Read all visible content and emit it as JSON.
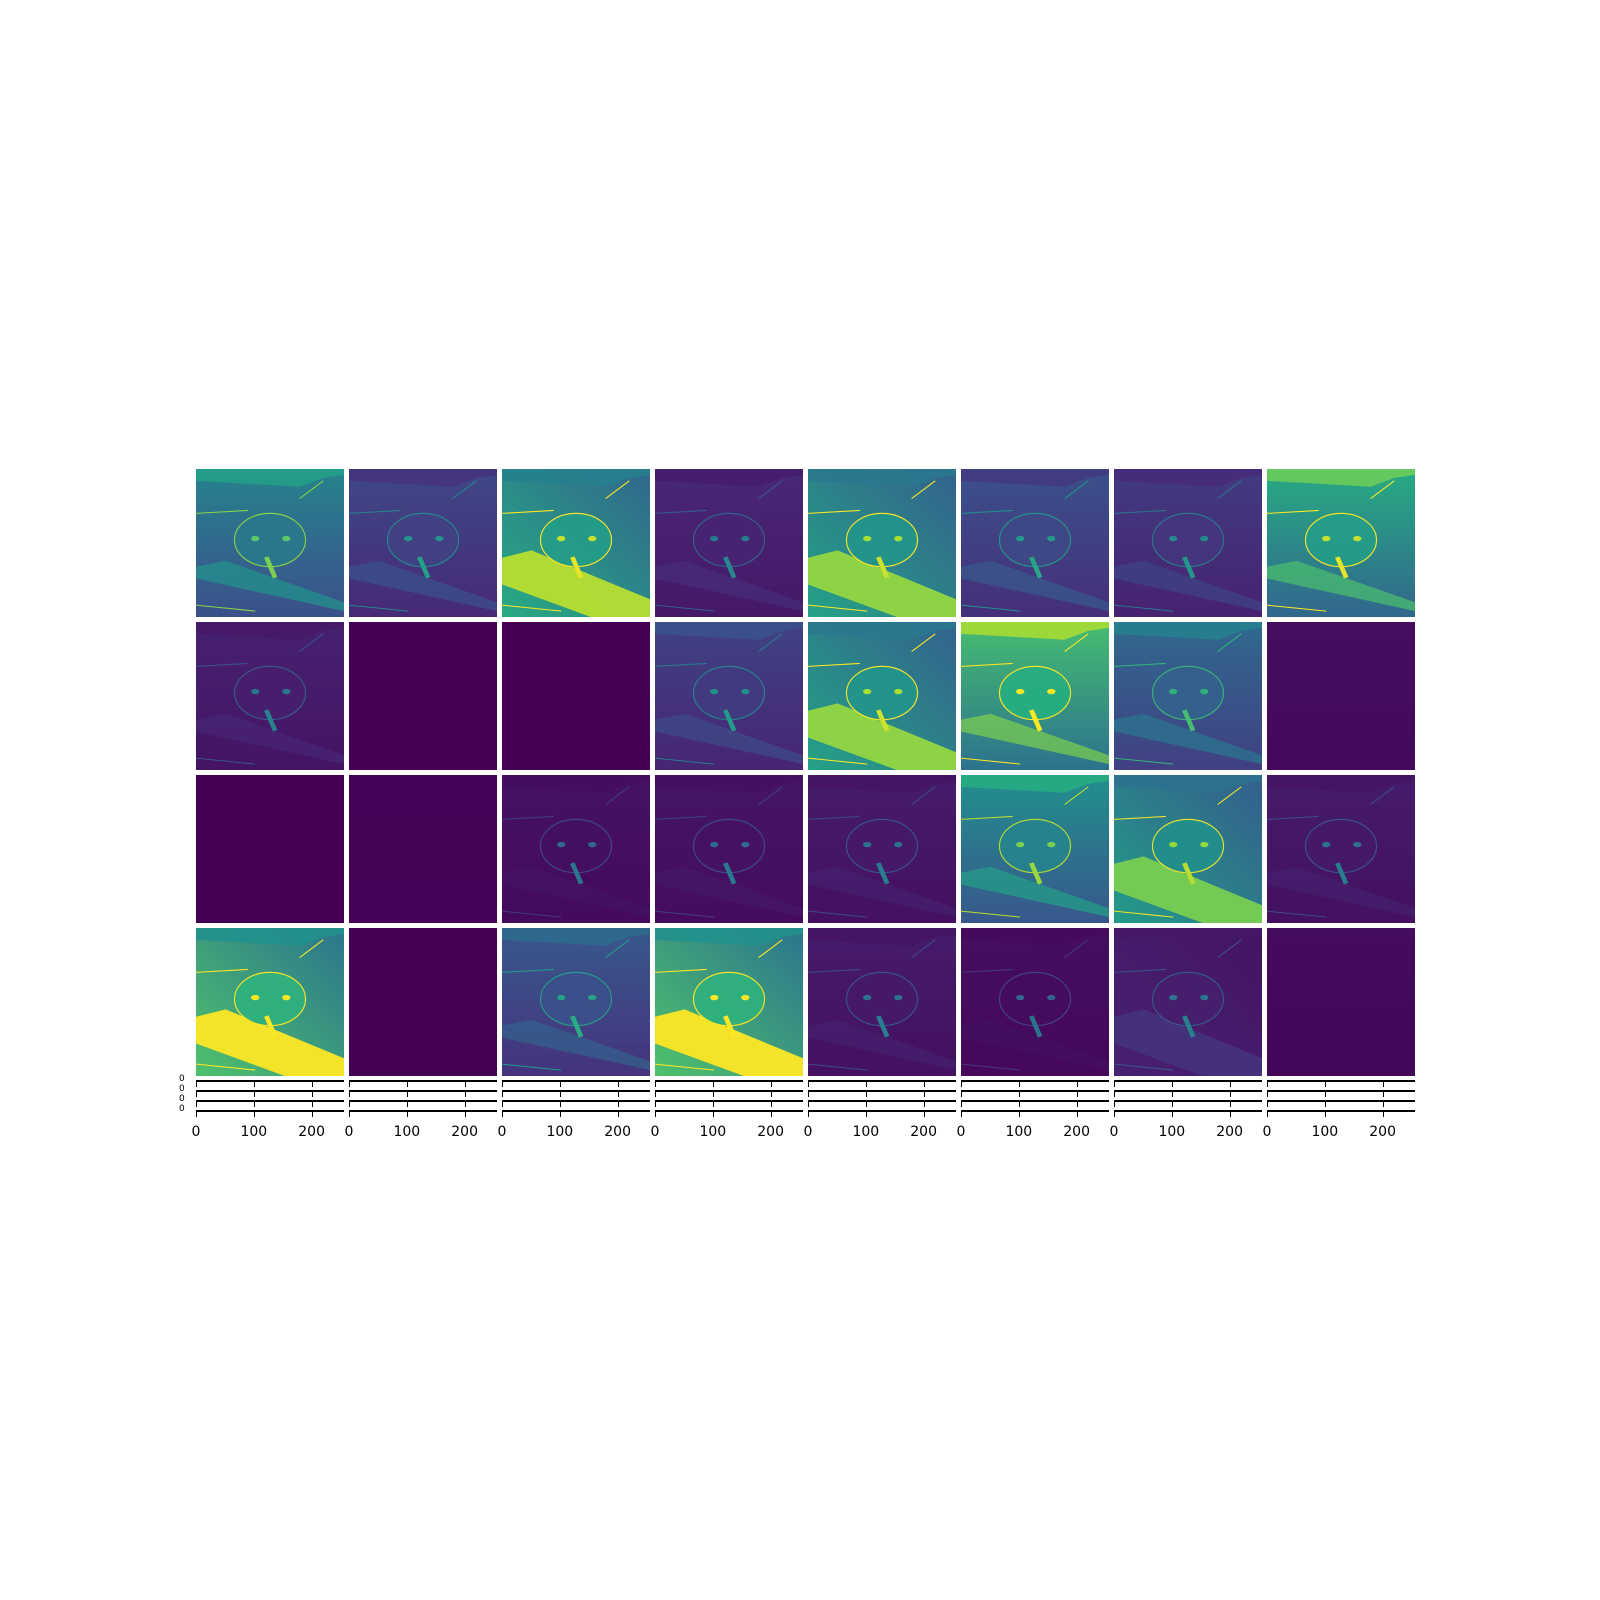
{
  "chart_data": {
    "type": "heatmap",
    "title": "",
    "colormap": "viridis",
    "grid_rows": 4,
    "grid_cols": 8,
    "image_size": [
      256,
      256
    ],
    "x_ticks": [
      0,
      100,
      200
    ],
    "x_tick_labels": [
      "0",
      "100",
      "200"
    ],
    "extra_axes_row": {
      "panels": 8,
      "x_tick_labels": [
        "0",
        "100",
        "200"
      ],
      "y_tick_label": "0"
    },
    "feature_maps": [
      {
        "row": 1,
        "col": 1,
        "intensity": 0.45,
        "bright": "top"
      },
      {
        "row": 1,
        "col": 2,
        "intensity": 0.22,
        "bright": "edges"
      },
      {
        "row": 1,
        "col": 3,
        "intensity": 0.62,
        "bright": "left"
      },
      {
        "row": 1,
        "col": 4,
        "intensity": 0.12,
        "bright": "edges"
      },
      {
        "row": 1,
        "col": 5,
        "intensity": 0.58,
        "bright": "left"
      },
      {
        "row": 1,
        "col": 6,
        "intensity": 0.25,
        "bright": "uniform"
      },
      {
        "row": 1,
        "col": 7,
        "intensity": 0.18,
        "bright": "edges"
      },
      {
        "row": 1,
        "col": 8,
        "intensity": 0.62,
        "bright": "top"
      },
      {
        "row": 2,
        "col": 1,
        "intensity": 0.1,
        "bright": "edges"
      },
      {
        "row": 2,
        "col": 2,
        "intensity": 0.0,
        "bright": "none"
      },
      {
        "row": 2,
        "col": 3,
        "intensity": 0.0,
        "bright": "none"
      },
      {
        "row": 2,
        "col": 4,
        "intensity": 0.2,
        "bright": "top"
      },
      {
        "row": 2,
        "col": 5,
        "intensity": 0.58,
        "bright": "left"
      },
      {
        "row": 2,
        "col": 6,
        "intensity": 0.7,
        "bright": "top"
      },
      {
        "row": 2,
        "col": 7,
        "intensity": 0.35,
        "bright": "top"
      },
      {
        "row": 2,
        "col": 8,
        "intensity": 0.04,
        "bright": "none"
      },
      {
        "row": 3,
        "col": 1,
        "intensity": 0.0,
        "bright": "none"
      },
      {
        "row": 3,
        "col": 2,
        "intensity": 0.01,
        "bright": "none"
      },
      {
        "row": 3,
        "col": 3,
        "intensity": 0.05,
        "bright": "edges"
      },
      {
        "row": 3,
        "col": 4,
        "intensity": 0.06,
        "bright": "edges"
      },
      {
        "row": 3,
        "col": 5,
        "intensity": 0.08,
        "bright": "edges"
      },
      {
        "row": 3,
        "col": 6,
        "intensity": 0.5,
        "bright": "top"
      },
      {
        "row": 3,
        "col": 7,
        "intensity": 0.55,
        "bright": "left"
      },
      {
        "row": 3,
        "col": 8,
        "intensity": 0.08,
        "bright": "edges"
      },
      {
        "row": 4,
        "col": 1,
        "intensity": 0.72,
        "bright": "left"
      },
      {
        "row": 4,
        "col": 2,
        "intensity": 0.0,
        "bright": "none"
      },
      {
        "row": 4,
        "col": 3,
        "intensity": 0.28,
        "bright": "top"
      },
      {
        "row": 4,
        "col": 4,
        "intensity": 0.72,
        "bright": "left"
      },
      {
        "row": 4,
        "col": 5,
        "intensity": 0.08,
        "bright": "edges"
      },
      {
        "row": 4,
        "col": 6,
        "intensity": 0.04,
        "bright": "edges"
      },
      {
        "row": 4,
        "col": 7,
        "intensity": 0.1,
        "bright": "left"
      },
      {
        "row": 4,
        "col": 8,
        "intensity": 0.03,
        "bright": "none"
      }
    ]
  }
}
